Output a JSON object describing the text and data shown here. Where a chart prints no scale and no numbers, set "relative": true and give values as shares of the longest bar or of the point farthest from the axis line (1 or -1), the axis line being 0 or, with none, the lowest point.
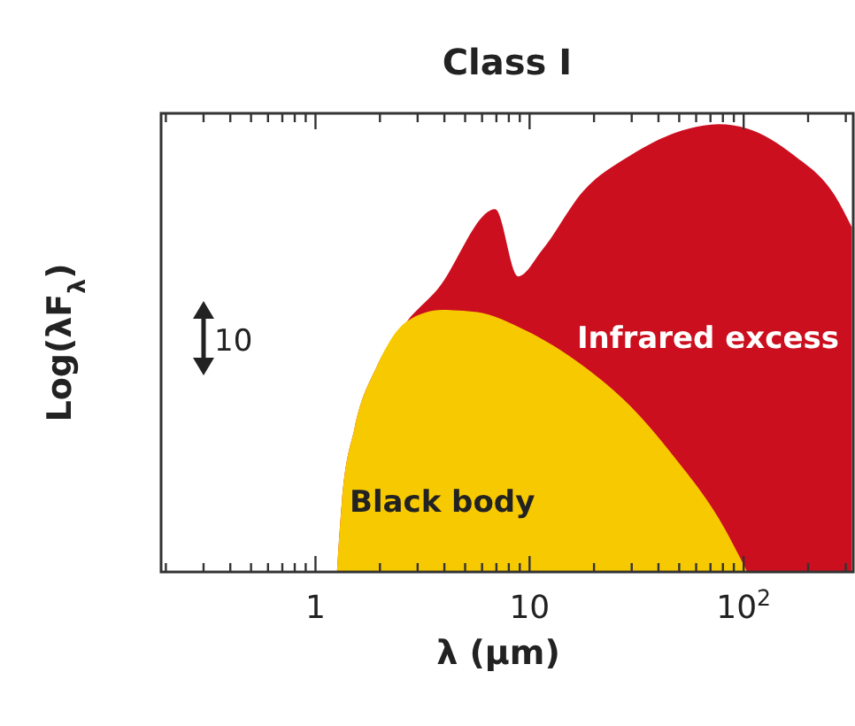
{
  "chart_data": {
    "type": "area",
    "title": "Class I",
    "xlabel": "λ (μm)",
    "ylabel": "Log(λF$_{λ}$)",
    "log": "x",
    "relative": true,
    "xlim": [
      0.19,
      325
    ],
    "xticks": [
      {
        "value": 0.2,
        "label": null
      },
      {
        "value": 0.3,
        "label": null
      },
      {
        "value": 0.4,
        "label": null
      },
      {
        "value": 0.5,
        "label": null
      },
      {
        "value": 0.6,
        "label": null
      },
      {
        "value": 0.7,
        "label": null
      },
      {
        "value": 0.8,
        "label": null
      },
      {
        "value": 0.9,
        "label": null
      },
      1,
      {
        "value": 2,
        "label": null
      },
      {
        "value": 3,
        "label": null
      },
      {
        "value": 4,
        "label": null
      },
      {
        "value": 5,
        "label": null
      },
      {
        "value": 6,
        "label": null
      },
      {
        "value": 7,
        "label": null
      },
      {
        "value": 8,
        "label": null
      },
      {
        "value": 9,
        "label": null
      },
      10,
      {
        "value": 20,
        "label": null
      },
      {
        "value": 30,
        "label": null
      },
      {
        "value": 40,
        "label": null
      },
      {
        "value": 50,
        "label": null
      },
      {
        "value": 60,
        "label": null
      },
      {
        "value": 70,
        "label": null
      },
      {
        "value": 80,
        "label": null
      },
      {
        "value": 90,
        "label": null
      },
      {
        "value": 100,
        "label": "10$^{2}$"
      },
      {
        "value": 200,
        "label": null
      },
      {
        "value": 300,
        "label": null
      }
    ],
    "series": [
      {
        "name": "Infrared excess",
        "color": "#cc0f1e",
        "x": [
          1.26,
          1.33,
          1.52,
          1.94,
          2.68,
          3.7,
          6.91,
          8.84,
          11.5,
          17.8,
          29.6,
          55.5,
          76.4,
          104,
          172,
          267,
          320
        ],
        "values": [
          0,
          0.16,
          0.32,
          0.46,
          0.56,
          0.63,
          0.81,
          0.66,
          0.72,
          0.85,
          0.93,
          0.99,
          1,
          0.99,
          0.93,
          0.84,
          0.77
        ]
      },
      {
        "name": "Black body",
        "color": "#f7c900",
        "x": [
          1.26,
          1.33,
          1.52,
          1.94,
          2.68,
          3.91,
          5.7,
          9.5,
          17.8,
          29.6,
          48.6,
          76.4,
          104
        ],
        "values": [
          0,
          0.16,
          0.32,
          0.46,
          0.56,
          0.585,
          0.58,
          0.54,
          0.46,
          0.37,
          0.25,
          0.12,
          0
        ]
      }
    ],
    "annotations": [
      "10"
    ]
  }
}
